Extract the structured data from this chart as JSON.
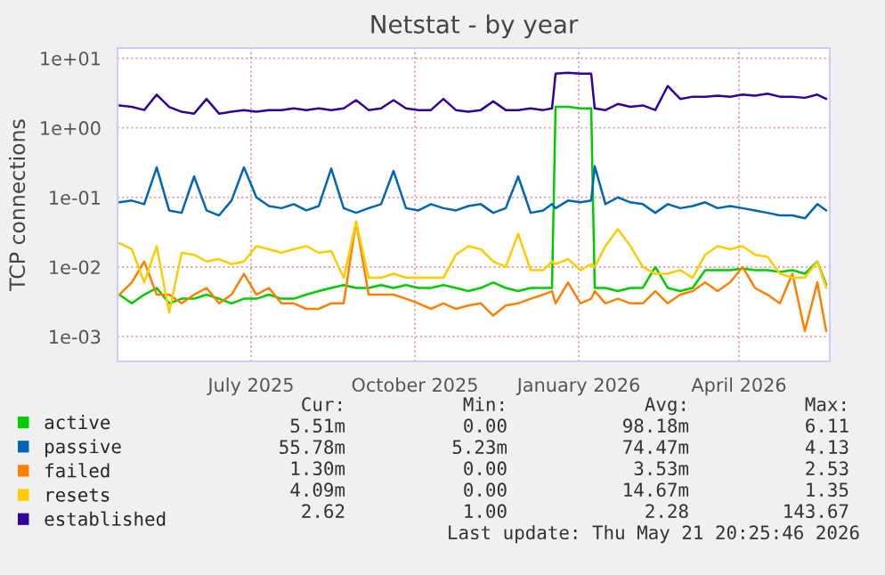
{
  "chart_data": {
    "type": "line",
    "title": "Netstat - by year",
    "ylabel": "TCP connections",
    "x": [
      "2025-04-18",
      "2025-04-25",
      "2025-05-02",
      "2025-05-09",
      "2025-05-16",
      "2025-05-23",
      "2025-05-30",
      "2025-06-06",
      "2025-06-13",
      "2025-06-20",
      "2025-06-27",
      "2025-07-04",
      "2025-07-11",
      "2025-07-18",
      "2025-07-25",
      "2025-08-01",
      "2025-08-08",
      "2025-08-15",
      "2025-08-22",
      "2025-08-29",
      "2025-09-05",
      "2025-09-12",
      "2025-09-19",
      "2025-09-26",
      "2025-10-03",
      "2025-10-10",
      "2025-10-17",
      "2025-10-24",
      "2025-10-31",
      "2025-11-07",
      "2025-11-14",
      "2025-11-21",
      "2025-11-28",
      "2025-12-05",
      "2025-12-12",
      "2025-12-17",
      "2025-12-19",
      "2025-12-26",
      "2026-01-02",
      "2026-01-08",
      "2026-01-10",
      "2026-01-16",
      "2026-01-23",
      "2026-01-30",
      "2026-02-06",
      "2026-02-13",
      "2026-02-20",
      "2026-02-27",
      "2026-03-06",
      "2026-03-13",
      "2026-03-20",
      "2026-03-27",
      "2026-04-03",
      "2026-04-10",
      "2026-04-17",
      "2026-04-24",
      "2026-05-01",
      "2026-05-08",
      "2026-05-15",
      "2026-05-20"
    ],
    "series": [
      {
        "name": "active",
        "color": "#00cc00",
        "values": [
          0.004,
          0.003,
          0.004,
          0.005,
          0.003,
          0.0035,
          0.0035,
          0.004,
          0.0035,
          0.003,
          0.0035,
          0.0035,
          0.004,
          0.0035,
          0.0035,
          0.004,
          0.0045,
          0.005,
          0.0055,
          0.005,
          0.005,
          0.0055,
          0.005,
          0.0055,
          0.005,
          0.005,
          0.0055,
          0.005,
          0.0045,
          0.005,
          0.006,
          0.005,
          0.0045,
          0.005,
          0.005,
          0.005,
          2.0,
          2.0,
          1.9,
          1.9,
          0.005,
          0.005,
          0.0045,
          0.005,
          0.005,
          0.01,
          0.005,
          0.0045,
          0.005,
          0.009,
          0.009,
          0.009,
          0.0095,
          0.009,
          0.009,
          0.0085,
          0.009,
          0.008,
          0.012,
          0.0055
        ]
      },
      {
        "name": "passive",
        "color": "#0066b3",
        "values": [
          0.085,
          0.09,
          0.08,
          0.27,
          0.065,
          0.06,
          0.2,
          0.065,
          0.055,
          0.09,
          0.27,
          0.1,
          0.075,
          0.07,
          0.08,
          0.065,
          0.075,
          0.26,
          0.07,
          0.06,
          0.07,
          0.08,
          0.24,
          0.07,
          0.065,
          0.08,
          0.07,
          0.065,
          0.075,
          0.08,
          0.06,
          0.07,
          0.2,
          0.06,
          0.065,
          0.08,
          0.07,
          0.09,
          0.085,
          0.09,
          0.28,
          0.08,
          0.1,
          0.085,
          0.08,
          0.06,
          0.08,
          0.07,
          0.075,
          0.085,
          0.07,
          0.075,
          0.07,
          0.065,
          0.06,
          0.055,
          0.055,
          0.05,
          0.08,
          0.065
        ]
      },
      {
        "name": "failed",
        "color": "#ff8000",
        "values": [
          0.004,
          0.006,
          0.012,
          0.004,
          0.004,
          0.003,
          0.004,
          0.005,
          0.003,
          0.004,
          0.008,
          0.004,
          0.005,
          0.003,
          0.003,
          0.0025,
          0.0025,
          0.003,
          0.003,
          0.045,
          0.004,
          0.004,
          0.004,
          0.0035,
          0.003,
          0.0025,
          0.003,
          0.0025,
          0.0028,
          0.003,
          0.002,
          0.0028,
          0.003,
          0.0035,
          0.004,
          0.0045,
          0.003,
          0.006,
          0.003,
          0.0035,
          0.0045,
          0.003,
          0.0035,
          0.003,
          0.003,
          0.0045,
          0.003,
          0.004,
          0.0045,
          0.006,
          0.0045,
          0.006,
          0.01,
          0.005,
          0.004,
          0.003,
          0.008,
          0.0012,
          0.006,
          0.0012
        ]
      },
      {
        "name": "resets",
        "color": "#ffcc00",
        "values": [
          0.022,
          0.018,
          0.006,
          0.02,
          0.0022,
          0.016,
          0.015,
          0.012,
          0.013,
          0.011,
          0.012,
          0.02,
          0.018,
          0.016,
          0.018,
          0.02,
          0.016,
          0.017,
          0.007,
          0.045,
          0.007,
          0.007,
          0.008,
          0.007,
          0.007,
          0.007,
          0.007,
          0.015,
          0.02,
          0.018,
          0.012,
          0.01,
          0.03,
          0.009,
          0.009,
          0.012,
          0.011,
          0.013,
          0.009,
          0.011,
          0.01,
          0.02,
          0.035,
          0.02,
          0.01,
          0.008,
          0.008,
          0.009,
          0.007,
          0.015,
          0.02,
          0.018,
          0.02,
          0.015,
          0.014,
          0.008,
          0.007,
          0.007,
          0.012,
          0.005
        ]
      },
      {
        "name": "established",
        "color": "#330099",
        "values": [
          2.1,
          2.0,
          1.8,
          3.0,
          2.0,
          1.7,
          1.6,
          2.6,
          1.6,
          1.7,
          1.8,
          1.7,
          1.8,
          1.8,
          1.9,
          1.8,
          1.9,
          1.8,
          1.9,
          2.5,
          1.8,
          1.9,
          2.5,
          1.9,
          1.8,
          1.8,
          2.6,
          1.8,
          1.7,
          1.8,
          2.4,
          1.8,
          1.8,
          1.9,
          1.8,
          1.9,
          6.0,
          6.2,
          6.0,
          6.0,
          1.9,
          1.8,
          2.2,
          2.0,
          2.1,
          1.8,
          4.0,
          2.6,
          2.8,
          2.8,
          2.9,
          2.8,
          3.0,
          2.9,
          3.1,
          2.8,
          2.8,
          2.7,
          3.0,
          2.6
        ]
      }
    ],
    "log": "y",
    "ylim": [
      0.00044,
      14
    ],
    "yticks": [
      {
        "value": 0.001,
        "label": "1e-03"
      },
      {
        "value": 0.01,
        "label": "1e-02"
      },
      {
        "value": 0.1,
        "label": "1e-01"
      },
      {
        "value": 1,
        "label": "1e+00"
      },
      {
        "value": 10,
        "label": "1e+01"
      }
    ],
    "xlim": [
      "2025-04-17",
      "2026-05-22"
    ],
    "xticks": [
      {
        "value": "2025-07-01",
        "label": "July 2025"
      },
      {
        "value": "2025-10-01",
        "label": "October 2025"
      },
      {
        "value": "2026-01-01",
        "label": "January 2026"
      },
      {
        "value": "2026-04-01",
        "label": "April 2026"
      }
    ],
    "grid": true,
    "legend": "bottom left",
    "marker": "none",
    "line_style": "solid",
    "annotations": [
      "Cur:",
      "Min:",
      "Avg:",
      "Max:",
      "5.51m",
      "0.00",
      "98.18m",
      "6.11",
      "55.78m",
      "5.23m",
      "74.47m",
      "4.13",
      "1.30m",
      "0.00",
      "3.53m",
      "2.53",
      "4.09m",
      "0.00",
      "14.67m",
      "1.35",
      "2.62",
      "1.00",
      "2.28",
      "143.67",
      "Last update: Thu May 21 20:25:46 2026"
    ]
  }
}
